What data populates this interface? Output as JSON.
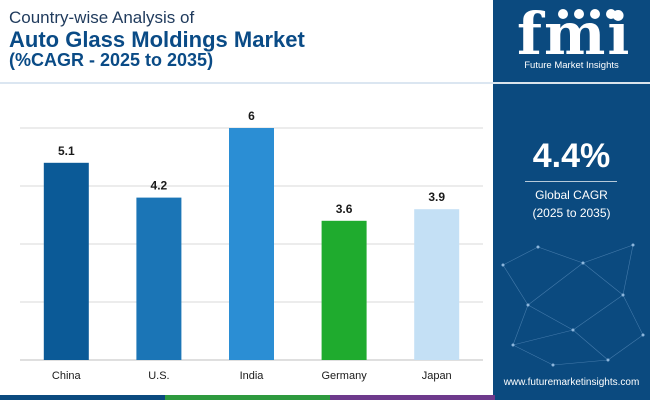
{
  "header": {
    "title_line1": "Country-wise Analysis of",
    "title_line2": "Auto Glass Moldings Market",
    "title_line3": "(%CAGR - 2025 to 2035)"
  },
  "sidebar": {
    "logo_text": "fmi",
    "logo_subtitle": "Future Market Insights",
    "cagr_value": "4.4%",
    "cagr_label": "Global CAGR",
    "cagr_range": "(2025 to 2035)",
    "website": "www.futuremarketinsights.com"
  },
  "colors": {
    "sidebar_bg": "#0b4a7f",
    "title": "#0a4b86",
    "footer": [
      "#0b4a7f",
      "#2e9a3e",
      "#6e3a8c",
      "#0b4a7f"
    ]
  },
  "chart_data": {
    "type": "bar",
    "title": "Country-wise Analysis of Auto Glass Moldings Market (%CAGR - 2025 to 2035)",
    "categories": [
      "China",
      "U.S.",
      "India",
      "Germany",
      "Japan"
    ],
    "values": [
      5.1,
      4.2,
      6,
      3.6,
      3.9
    ],
    "value_labels": [
      "5.1",
      "4.2",
      "6",
      "3.6",
      "3.9"
    ],
    "bar_colors": [
      "#0b5a97",
      "#1b75b6",
      "#2b8ed4",
      "#1fab2e",
      "#c4e0f5"
    ],
    "xlabel": "",
    "ylabel": "",
    "ylim": [
      0,
      6
    ],
    "grid": true,
    "gridlines": 4,
    "legend": "none"
  }
}
